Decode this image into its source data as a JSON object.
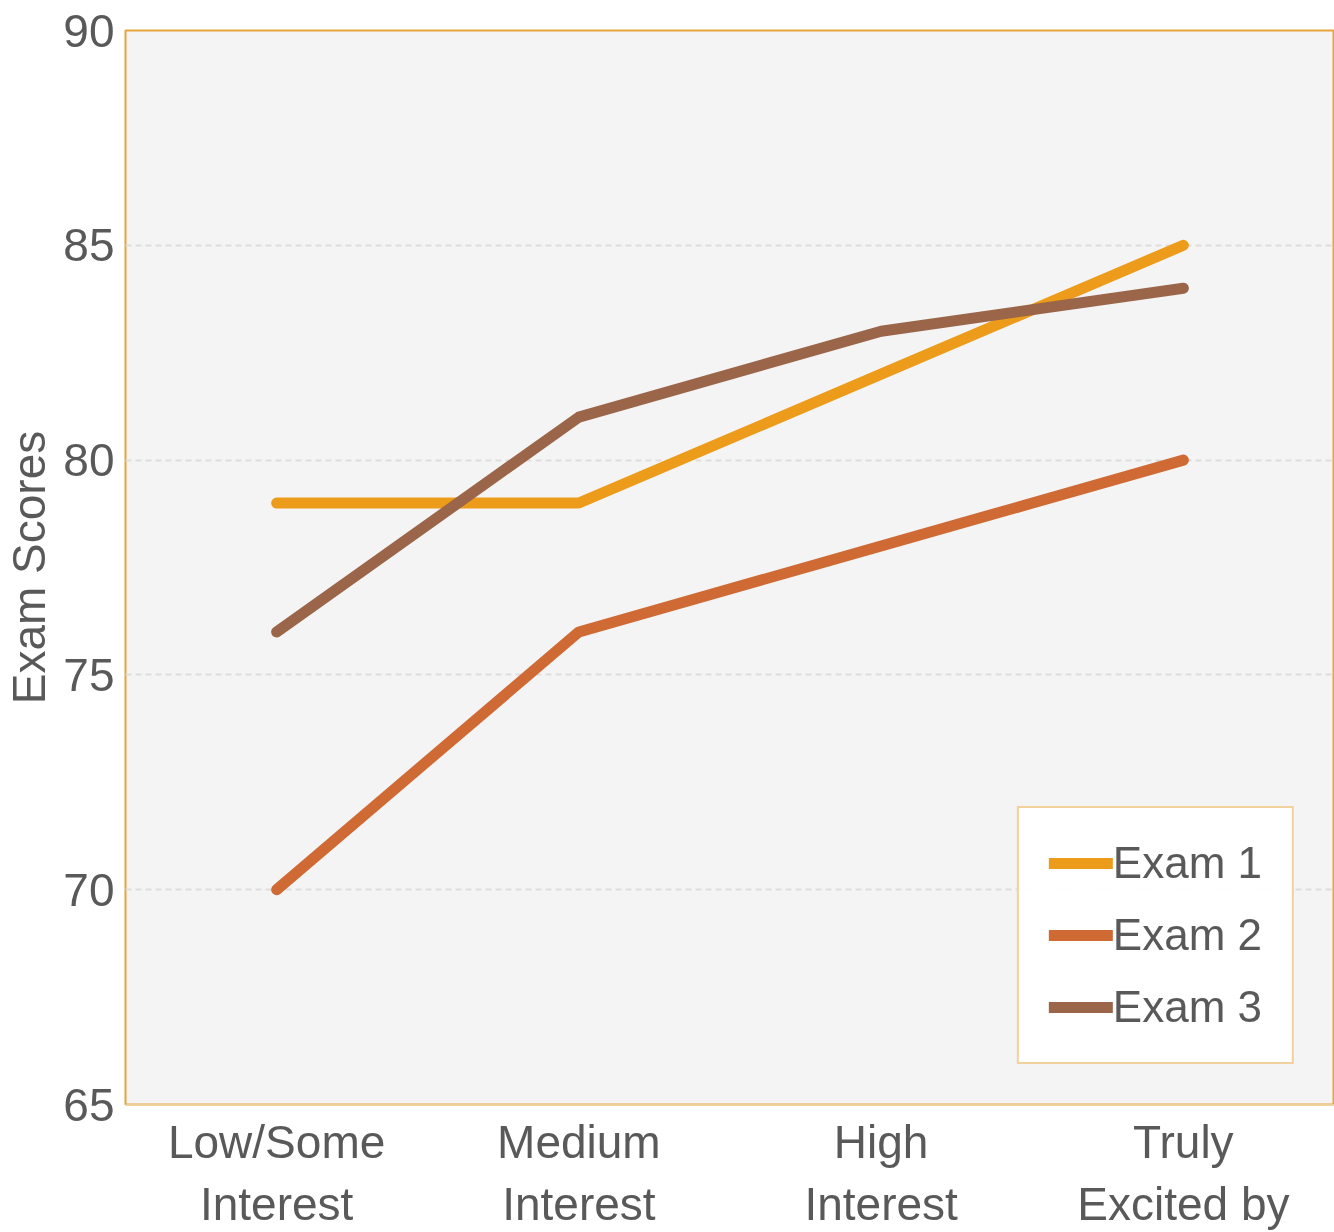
{
  "chart_data": {
    "type": "line",
    "ylabel": "Exam Scores",
    "categories": [
      "Low/Some\nInterest",
      "Medium\nInterest",
      "High\nInterest",
      "Truly\nExcited by"
    ],
    "series": [
      {
        "name": "Exam 1",
        "color": "#ed9b1a",
        "values": [
          79,
          79,
          82,
          85
        ]
      },
      {
        "name": "Exam 2",
        "color": "#cf6a35",
        "values": [
          70,
          76,
          78,
          80
        ]
      },
      {
        "name": "Exam 3",
        "color": "#9a6549",
        "values": [
          76,
          81,
          83,
          84
        ]
      }
    ],
    "ylim": [
      65,
      90
    ],
    "yticks": [
      65,
      70,
      75,
      80,
      85,
      90
    ],
    "grid": "y",
    "legend": "bottom right",
    "marker": "none",
    "line_style": "solid"
  }
}
